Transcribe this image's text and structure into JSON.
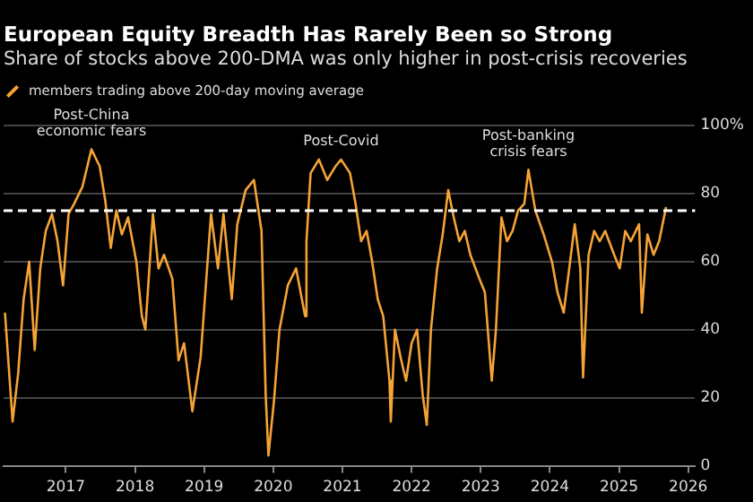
{
  "chart_data": {
    "type": "line",
    "title": "European Equity Breadth Has Rarely Been so Strong",
    "subtitle": "Share of stocks above 200-DMA was only higher in post-crisis recoveries",
    "x": [
      2016.62,
      2016.73,
      2016.81,
      2016.89,
      2016.97,
      2017.05,
      2017.13,
      2017.21,
      2017.3,
      2017.38,
      2017.46,
      2017.54,
      2017.62,
      2017.74,
      2017.87,
      2017.99,
      2018.07,
      2018.15,
      2018.23,
      2018.31,
      2018.4,
      2018.52,
      2018.6,
      2018.65,
      2018.76,
      2018.84,
      2018.92,
      2019.04,
      2019.13,
      2019.21,
      2019.33,
      2019.45,
      2019.6,
      2019.7,
      2019.78,
      2019.9,
      2019.98,
      2020.1,
      2020.22,
      2020.33,
      2020.39,
      2020.43,
      2020.51,
      2020.59,
      2020.71,
      2020.83,
      2020.96,
      2020.98,
      2021.04,
      2021.16,
      2021.28,
      2021.4,
      2021.48,
      2021.61,
      2021.69,
      2021.77,
      2021.85,
      2021.93,
      2022.01,
      2022.09,
      2022.18,
      2022.2,
      2022.26,
      2022.34,
      2022.42,
      2022.5,
      2022.58,
      2022.66,
      2022.72,
      2022.78,
      2022.87,
      2022.95,
      2023.03,
      2023.11,
      2023.19,
      2023.27,
      2023.35,
      2023.48,
      2023.56,
      2023.66,
      2023.72,
      2023.8,
      2023.88,
      2023.96,
      2024.04,
      2024.13,
      2024.19,
      2024.29,
      2024.41,
      2024.53,
      2024.61,
      2024.7,
      2024.78,
      2024.86,
      2024.94,
      2024.98,
      2025.06,
      2025.14,
      2025.22,
      2025.3,
      2025.43,
      2025.51,
      2025.59,
      2025.67,
      2025.79,
      2025.83,
      2025.91,
      2026.0,
      2026.08,
      2026.18
    ],
    "series": [
      {
        "name": "members trading above 200-day moving average",
        "color": "#f5a336",
        "values": [
          45,
          13,
          27,
          49,
          60,
          34,
          58,
          69,
          74,
          66,
          53,
          74,
          77,
          82,
          93,
          88,
          78,
          64,
          75,
          68,
          73,
          60,
          44,
          40,
          74,
          58,
          62,
          55,
          31,
          36,
          16,
          32,
          74,
          58,
          74,
          49,
          71,
          81,
          84,
          69,
          21,
          3,
          19,
          40,
          53,
          58,
          44,
          66,
          86,
          90,
          84,
          88,
          90,
          86,
          77,
          66,
          69,
          60,
          49,
          44,
          25,
          13,
          40,
          32,
          25,
          36,
          40,
          21,
          12,
          40,
          58,
          68,
          81,
          73,
          66,
          69,
          62,
          55,
          51,
          25,
          40,
          73,
          66,
          69,
          75,
          77,
          87,
          75,
          68,
          60,
          51,
          45,
          58,
          71,
          58,
          26,
          62,
          69,
          66,
          69,
          62,
          58,
          69,
          66,
          71,
          45,
          68,
          62,
          66,
          76
        ]
      }
    ],
    "xlim": [
      2016.6,
      2026.6
    ],
    "xticks": [
      {
        "value": 2017.5,
        "label": "2017"
      },
      {
        "value": 2018.5,
        "label": "2018"
      },
      {
        "value": 2019.5,
        "label": "2019"
      },
      {
        "value": 2020.5,
        "label": "2020"
      },
      {
        "value": 2021.5,
        "label": "2021"
      },
      {
        "value": 2022.5,
        "label": "2022"
      },
      {
        "value": 2023.5,
        "label": "2023"
      },
      {
        "value": 2024.5,
        "label": "2024"
      },
      {
        "value": 2025.5,
        "label": "2025"
      },
      {
        "value": 2026.5,
        "label": "2026"
      }
    ],
    "ylim": [
      0,
      100
    ],
    "yticks": [
      0,
      20,
      40,
      60,
      80,
      {
        "value": 100,
        "label": "100%"
      }
    ],
    "grid": "y",
    "legend": "top left",
    "ref_lines": [
      {
        "axis": "y",
        "value": 75,
        "color": "#ffffff",
        "line_style": "dashed"
      }
    ],
    "annotations": [
      {
        "text": "Post-China economic fears",
        "x": 2017.87,
        "y": 93
      },
      {
        "text": "Post-Covid",
        "x": 2021.48,
        "y": 90
      },
      {
        "text": "Post-banking crisis fears",
        "x": 2024.19,
        "y": 87
      }
    ]
  }
}
